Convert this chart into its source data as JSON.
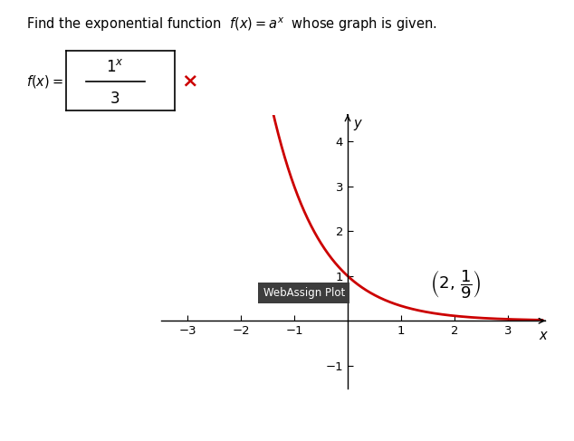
{
  "title": "Find the exponential function  $f(x) = a^x$  whose graph is given.",
  "title_fontsize": 10.5,
  "curve_base": 0.3333333333,
  "x_min": -3.5,
  "x_max": 3.7,
  "y_min": -1.5,
  "y_max": 4.6,
  "x_ticks": [
    -3,
    -2,
    -1,
    1,
    2,
    3
  ],
  "y_ticks": [
    -1,
    1,
    2,
    3,
    4
  ],
  "curve_color": "#cc0000",
  "curve_linewidth": 2.0,
  "background_color": "#ffffff",
  "webassign_box_text": "WebAssign Plot",
  "webassign_box_color": "#3d3d3d",
  "webassign_box_text_color": "#ffffff",
  "xlabel": "x",
  "ylabel": "y",
  "curve_x_start": -1.42,
  "curve_x_end": 3.65
}
